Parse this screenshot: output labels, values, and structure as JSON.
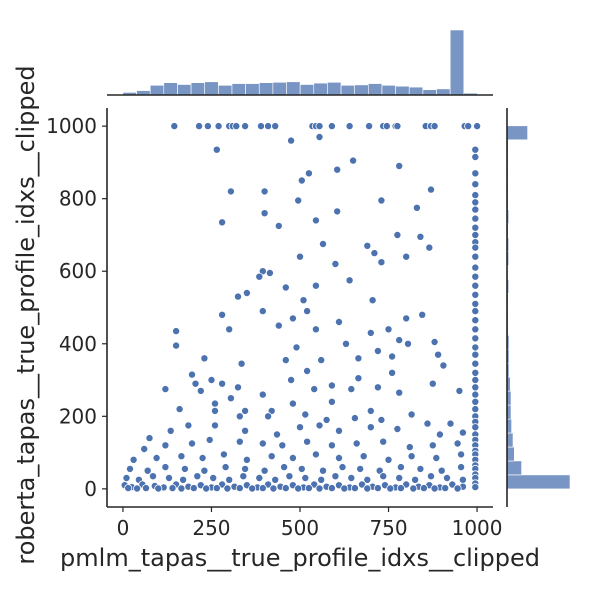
{
  "chart_data": {
    "type": "scatter",
    "subtype": "jointplot",
    "xlabel": "pmlm_tapas__true_profile_idxs__clipped",
    "ylabel": "roberta_tapas__true_profile_idxs__clipped",
    "xlim": [
      -45,
      1045
    ],
    "ylim": [
      -50,
      1050
    ],
    "x_ticks": [
      0,
      250,
      500,
      750,
      1000
    ],
    "y_ticks": [
      0,
      200,
      400,
      600,
      800,
      1000
    ],
    "grid": false,
    "color": "#4c72b0",
    "marginal_x_hist": {
      "bin_width": 38.5,
      "start": 0,
      "counts": [
        6,
        10,
        22,
        28,
        24,
        28,
        30,
        22,
        26,
        26,
        28,
        29,
        30,
        24,
        27,
        29,
        22,
        23,
        26,
        22,
        20,
        18,
        12,
        14,
        148,
        4
      ]
    },
    "marginal_y_hist": {
      "bin_width": 38.5,
      "start": 0,
      "counts": [
        190,
        44,
        22,
        18,
        14,
        12,
        12,
        10,
        6,
        6,
        6,
        4,
        4,
        4,
        5,
        3,
        5,
        5,
        4,
        5,
        4,
        4,
        4,
        4,
        4,
        62
      ]
    },
    "points": {
      "top_row_y": 1000,
      "top_row_x": [
        145,
        215,
        240,
        270,
        300,
        310,
        320,
        345,
        390,
        410,
        430,
        535,
        545,
        555,
        590,
        640,
        695,
        735,
        745,
        770,
        775,
        855,
        870,
        880,
        965,
        975,
        1000
      ],
      "right_col_x": 995,
      "right_col_y": [
        935,
        915,
        870,
        840,
        810,
        790,
        770,
        745,
        720,
        700,
        680,
        665,
        640,
        610,
        585,
        560,
        535,
        510,
        490,
        465,
        440,
        415,
        390,
        370,
        345,
        320,
        300,
        280,
        260,
        240,
        220,
        200,
        185,
        170,
        150,
        135,
        120,
        105,
        95,
        80,
        65,
        55,
        40,
        30,
        15,
        5
      ],
      "mid": [
        [
          265,
          935
        ],
        [
          555,
          970
        ],
        [
          475,
          960
        ],
        [
          650,
          905
        ],
        [
          605,
          880
        ],
        [
          780,
          890
        ],
        [
          505,
          850
        ],
        [
          525,
          870
        ],
        [
          870,
          825
        ],
        [
          400,
          820
        ],
        [
          305,
          820
        ],
        [
          495,
          795
        ],
        [
          730,
          795
        ],
        [
          830,
          775
        ],
        [
          400,
          760
        ],
        [
          440,
          725
        ],
        [
          280,
          735
        ],
        [
          605,
          765
        ],
        [
          545,
          740
        ],
        [
          775,
          700
        ],
        [
          840,
          695
        ],
        [
          865,
          665
        ],
        [
          565,
          675
        ],
        [
          690,
          670
        ],
        [
          710,
          650
        ],
        [
          500,
          640
        ],
        [
          800,
          640
        ],
        [
          600,
          620
        ],
        [
          730,
          625
        ],
        [
          395,
          600
        ],
        [
          460,
          555
        ],
        [
          545,
          560
        ],
        [
          640,
          575
        ],
        [
          385,
          585
        ],
        [
          415,
          595
        ],
        [
          350,
          540
        ],
        [
          510,
          520
        ],
        [
          705,
          520
        ],
        [
          325,
          530
        ],
        [
          280,
          480
        ],
        [
          480,
          470
        ],
        [
          520,
          490
        ],
        [
          440,
          450
        ],
        [
          800,
          470
        ],
        [
          750,
          440
        ],
        [
          610,
          460
        ],
        [
          150,
          435
        ],
        [
          300,
          440
        ],
        [
          395,
          490
        ],
        [
          545,
          440
        ],
        [
          700,
          430
        ],
        [
          780,
          410
        ],
        [
          845,
          480
        ],
        [
          880,
          405
        ],
        [
          150,
          395
        ],
        [
          490,
          390
        ],
        [
          630,
          400
        ],
        [
          720,
          380
        ],
        [
          890,
          370
        ],
        [
          805,
          400
        ],
        [
          230,
          360
        ],
        [
          335,
          345
        ],
        [
          560,
          355
        ],
        [
          665,
          360
        ],
        [
          760,
          365
        ],
        [
          195,
          315
        ],
        [
          460,
          355
        ],
        [
          205,
          290
        ],
        [
          120,
          275
        ],
        [
          280,
          290
        ],
        [
          325,
          280
        ],
        [
          475,
          300
        ],
        [
          520,
          325
        ],
        [
          665,
          305
        ],
        [
          720,
          280
        ],
        [
          760,
          320
        ],
        [
          905,
          340
        ],
        [
          220,
          270
        ],
        [
          250,
          300
        ],
        [
          305,
          250
        ],
        [
          395,
          260
        ],
        [
          540,
          275
        ],
        [
          590,
          285
        ],
        [
          645,
          275
        ],
        [
          780,
          265
        ],
        [
          875,
          290
        ],
        [
          950,
          270
        ],
        [
          160,
          220
        ],
        [
          260,
          235
        ],
        [
          330,
          200
        ],
        [
          420,
          215
        ],
        [
          480,
          235
        ],
        [
          590,
          240
        ],
        [
          700,
          215
        ],
        [
          815,
          205
        ],
        [
          260,
          215
        ],
        [
          345,
          215
        ],
        [
          410,
          200
        ],
        [
          515,
          205
        ],
        [
          575,
          190
        ],
        [
          655,
          195
        ],
        [
          730,
          190
        ],
        [
          860,
          180
        ],
        [
          925,
          180
        ],
        [
          75,
          140
        ],
        [
          135,
          160
        ],
        [
          185,
          175
        ],
        [
          260,
          175
        ],
        [
          345,
          160
        ],
        [
          435,
          150
        ],
        [
          500,
          170
        ],
        [
          555,
          175
        ],
        [
          610,
          160
        ],
        [
          700,
          170
        ],
        [
          775,
          165
        ],
        [
          895,
          150
        ],
        [
          960,
          155
        ],
        [
          60,
          110
        ],
        [
          120,
          120
        ],
        [
          195,
          125
        ],
        [
          245,
          135
        ],
        [
          330,
          130
        ],
        [
          395,
          125
        ],
        [
          450,
          120
        ],
        [
          520,
          130
        ],
        [
          590,
          120
        ],
        [
          660,
          125
        ],
        [
          735,
          130
        ],
        [
          810,
          115
        ],
        [
          875,
          120
        ],
        [
          945,
          125
        ],
        [
          30,
          80
        ],
        [
          95,
          85
        ],
        [
          165,
          90
        ],
        [
          225,
          85
        ],
        [
          285,
          95
        ],
        [
          350,
          80
        ],
        [
          420,
          90
        ],
        [
          480,
          85
        ],
        [
          545,
          95
        ],
        [
          610,
          85
        ],
        [
          680,
          90
        ],
        [
          750,
          80
        ],
        [
          815,
          90
        ],
        [
          885,
          85
        ],
        [
          955,
          95
        ],
        [
          20,
          55
        ],
        [
          70,
          50
        ],
        [
          120,
          60
        ],
        [
          175,
          55
        ],
        [
          230,
          50
        ],
        [
          290,
          60
        ],
        [
          345,
          55
        ],
        [
          400,
          50
        ],
        [
          455,
          60
        ],
        [
          505,
          55
        ],
        [
          565,
          50
        ],
        [
          620,
          60
        ],
        [
          670,
          55
        ],
        [
          725,
          50
        ],
        [
          785,
          60
        ],
        [
          840,
          55
        ],
        [
          900,
          50
        ],
        [
          955,
          60
        ],
        [
          10,
          30
        ],
        [
          45,
          25
        ],
        [
          85,
          35
        ],
        [
          130,
          30
        ],
        [
          170,
          25
        ],
        [
          210,
          35
        ],
        [
          255,
          30
        ],
        [
          300,
          25
        ],
        [
          340,
          35
        ],
        [
          385,
          30
        ],
        [
          430,
          25
        ],
        [
          470,
          35
        ],
        [
          515,
          30
        ],
        [
          560,
          25
        ],
        [
          600,
          35
        ],
        [
          645,
          30
        ],
        [
          690,
          25
        ],
        [
          735,
          35
        ],
        [
          780,
          30
        ],
        [
          825,
          25
        ],
        [
          870,
          35
        ],
        [
          915,
          30
        ],
        [
          960,
          25
        ],
        [
          5,
          10
        ],
        [
          25,
          5
        ],
        [
          55,
          12
        ],
        [
          90,
          8
        ],
        [
          115,
          4
        ],
        [
          150,
          12
        ],
        [
          185,
          6
        ],
        [
          220,
          10
        ],
        [
          250,
          4
        ],
        [
          280,
          12
        ],
        [
          315,
          6
        ],
        [
          350,
          10
        ],
        [
          380,
          4
        ],
        [
          410,
          12
        ],
        [
          445,
          6
        ],
        [
          480,
          10
        ],
        [
          510,
          4
        ],
        [
          540,
          12
        ],
        [
          575,
          6
        ],
        [
          610,
          10
        ],
        [
          640,
          4
        ],
        [
          675,
          12
        ],
        [
          705,
          6
        ],
        [
          740,
          10
        ],
        [
          770,
          4
        ],
        [
          800,
          12
        ],
        [
          835,
          6
        ],
        [
          865,
          10
        ],
        [
          895,
          4
        ],
        [
          930,
          12
        ],
        [
          960,
          6
        ],
        [
          15,
          2
        ],
        [
          40,
          1
        ],
        [
          65,
          2
        ],
        [
          100,
          1
        ],
        [
          140,
          2
        ],
        [
          165,
          1
        ],
        [
          200,
          2
        ],
        [
          235,
          1
        ],
        [
          265,
          2
        ],
        [
          295,
          1
        ],
        [
          330,
          2
        ],
        [
          365,
          1
        ],
        [
          395,
          2
        ],
        [
          425,
          1
        ],
        [
          460,
          2
        ],
        [
          495,
          1
        ],
        [
          525,
          2
        ],
        [
          555,
          1
        ],
        [
          590,
          2
        ],
        [
          625,
          1
        ],
        [
          655,
          2
        ],
        [
          690,
          1
        ],
        [
          720,
          2
        ],
        [
          755,
          1
        ],
        [
          785,
          2
        ],
        [
          820,
          1
        ],
        [
          850,
          2
        ],
        [
          880,
          1
        ],
        [
          910,
          2
        ],
        [
          945,
          1
        ]
      ]
    }
  }
}
